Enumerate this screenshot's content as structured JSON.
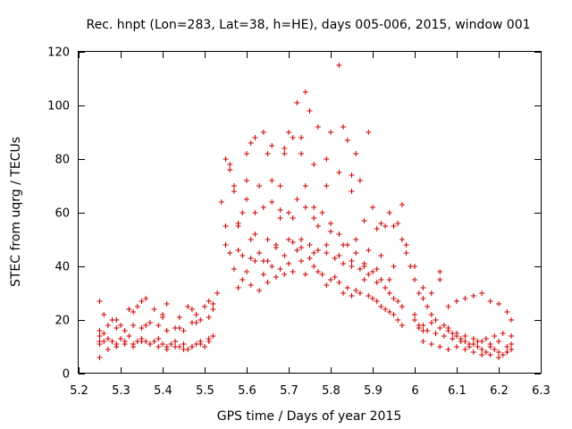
{
  "chart_data": {
    "type": "scatter",
    "title": "Rec. hnpt (Lon=283, Lat=38, h=HE), days 005-006, 2015, window 001",
    "xlabel": "GPS time / Days of year 2015",
    "ylabel": "STEC from uqrg / TECUs",
    "xlim": [
      5.2,
      6.3
    ],
    "ylim": [
      0,
      120
    ],
    "xticks": [
      "5.2",
      "5.3",
      "5.4",
      "5.5",
      "5.6",
      "5.7",
      "5.8",
      "5.9",
      "6",
      "6.1",
      "6.2",
      "6.3"
    ],
    "xtick_values": [
      5.2,
      5.3,
      5.4,
      5.5,
      5.6,
      5.7,
      5.8,
      5.9,
      6.0,
      6.1,
      6.2,
      6.3
    ],
    "yticks": [
      "0",
      "20",
      "40",
      "60",
      "80",
      "100",
      "120"
    ],
    "ytick_values": [
      0,
      20,
      40,
      60,
      80,
      100,
      120
    ],
    "marker": "+",
    "color": "#cc0000",
    "grid": false,
    "series": [
      {
        "name": "STEC",
        "x": [
          5.25,
          5.25,
          5.25,
          5.26,
          5.27,
          5.28,
          5.29,
          5.3,
          5.31,
          5.32,
          5.33,
          5.34,
          5.35,
          5.36,
          5.37,
          5.38,
          5.39,
          5.4,
          5.41,
          5.42,
          5.43,
          5.44,
          5.45,
          5.46,
          5.47,
          5.48,
          5.49,
          5.5,
          5.51,
          5.52,
          5.25,
          5.27,
          5.29,
          5.31,
          5.33,
          5.35,
          5.37,
          5.39,
          5.41,
          5.43,
          5.45,
          5.47,
          5.49,
          5.51,
          5.25,
          5.27,
          5.29,
          5.31,
          5.33,
          5.35,
          5.37,
          5.39,
          5.41,
          5.43,
          5.45,
          5.47,
          5.49,
          5.51,
          5.25,
          5.26,
          5.28,
          5.3,
          5.32,
          5.33,
          5.34,
          5.35,
          5.36,
          5.38,
          5.4,
          5.41,
          5.44,
          5.46,
          5.47,
          5.48,
          5.5,
          5.51,
          5.52,
          5.53,
          5.26,
          5.29,
          5.32,
          5.36,
          5.4,
          5.44,
          5.48,
          5.52,
          5.54,
          5.55,
          5.56,
          5.57,
          5.58,
          5.59,
          5.6,
          5.61,
          5.62,
          5.63,
          5.64,
          5.65,
          5.66,
          5.67,
          5.68,
          5.69,
          5.7,
          5.71,
          5.72,
          5.73,
          5.74,
          5.75,
          5.76,
          5.77,
          5.78,
          5.79,
          5.8,
          5.81,
          5.82,
          5.83,
          5.84,
          5.85,
          5.86,
          5.87,
          5.88,
          5.89,
          5.9,
          5.91,
          5.92,
          5.93,
          5.94,
          5.95,
          5.96,
          5.97,
          5.55,
          5.57,
          5.59,
          5.61,
          5.63,
          5.65,
          5.67,
          5.69,
          5.71,
          5.73,
          5.75,
          5.77,
          5.79,
          5.81,
          5.83,
          5.85,
          5.87,
          5.89,
          5.91,
          5.93,
          5.95,
          5.97,
          5.56,
          5.58,
          5.6,
          5.62,
          5.64,
          5.66,
          5.68,
          5.7,
          5.72,
          5.74,
          5.76,
          5.78,
          5.8,
          5.82,
          5.84,
          5.86,
          5.88,
          5.9,
          5.92,
          5.94,
          5.96,
          5.55,
          5.56,
          5.57,
          5.6,
          5.61,
          5.62,
          5.64,
          5.65,
          5.66,
          5.68,
          5.69,
          5.7,
          5.72,
          5.73,
          5.74,
          5.75,
          5.76,
          5.77,
          5.79,
          5.8,
          5.82,
          5.83,
          5.84,
          5.85,
          5.86,
          5.87,
          5.89,
          5.9,
          5.92,
          5.93,
          5.95,
          5.96,
          5.97,
          5.98,
          5.58,
          5.6,
          5.63,
          5.66,
          5.69,
          5.71,
          5.73,
          5.76,
          5.79,
          5.82,
          5.85,
          5.88,
          5.91,
          5.94,
          5.97,
          5.59,
          5.62,
          5.65,
          5.68,
          5.71,
          5.74,
          5.77,
          5.8,
          5.83,
          5.86,
          5.89,
          5.92,
          5.95,
          5.55,
          5.58,
          5.61,
          5.64,
          5.67,
          5.7,
          5.73,
          5.76,
          5.79,
          5.82,
          5.85,
          5.88,
          5.91,
          5.94,
          6.0,
          6.01,
          6.02,
          6.03,
          6.04,
          6.05,
          6.06,
          6.07,
          6.08,
          6.09,
          6.1,
          6.11,
          6.12,
          6.13,
          6.14,
          6.15,
          6.16,
          6.17,
          6.18,
          6.19,
          6.2,
          6.21,
          6.22,
          6.23,
          6.0,
          6.02,
          6.04,
          6.06,
          6.08,
          6.1,
          6.12,
          6.14,
          6.16,
          6.18,
          6.2,
          6.22,
          6.23,
          6.0,
          6.02,
          6.04,
          6.06,
          6.08,
          6.1,
          6.12,
          6.14,
          6.16,
          6.18,
          6.2,
          6.22,
          6.23,
          6.01,
          6.03,
          6.05,
          6.07,
          6.09,
          6.11,
          6.13,
          6.15,
          6.17,
          6.19,
          6.21,
          6.23,
          6.02,
          6.04,
          6.06,
          6.08,
          6.1,
          6.12,
          6.14,
          6.16,
          6.18,
          6.2,
          6.22,
          5.98,
          5.99,
          6.0,
          6.01,
          6.02
        ],
        "y": [
          12,
          14,
          11,
          12,
          13,
          12,
          11,
          13,
          12,
          14,
          11,
          12,
          13,
          12,
          11,
          12,
          13,
          11,
          10,
          11,
          12,
          10,
          11,
          9,
          10,
          11,
          12,
          10,
          12,
          14,
          6,
          9,
          10,
          11,
          10,
          12,
          11,
          10,
          9,
          10,
          9,
          10,
          11,
          13,
          16,
          18,
          17,
          16,
          18,
          17,
          19,
          18,
          16,
          17,
          16,
          19,
          20,
          21,
          27,
          22,
          20,
          18,
          24,
          23,
          25,
          27,
          28,
          24,
          22,
          26,
          21,
          25,
          24,
          22,
          25,
          27,
          26,
          30,
          15,
          20,
          24,
          18,
          21,
          17,
          19,
          24,
          64,
          55,
          45,
          39,
          32,
          35,
          38,
          33,
          42,
          31,
          37,
          34,
          40,
          36,
          39,
          37,
          41,
          38,
          46,
          42,
          37,
          43,
          40,
          38,
          37,
          33,
          35,
          36,
          34,
          30,
          32,
          29,
          31,
          30,
          35,
          29,
          28,
          27,
          25,
          24,
          23,
          22,
          20,
          18,
          80,
          68,
          60,
          50,
          45,
          42,
          47,
          44,
          49,
          50,
          48,
          46,
          45,
          43,
          41,
          40,
          39,
          37,
          34,
          32,
          28,
          25,
          78,
          56,
          72,
          60,
          62,
          64,
          58,
          60,
          65,
          70,
          58,
          60,
          56,
          52,
          48,
          45,
          40,
          38,
          35,
          30,
          27,
          80,
          76,
          70,
          82,
          86,
          88,
          90,
          82,
          85,
          70,
          84,
          90,
          101,
          88,
          105,
          98,
          78,
          92,
          80,
          90,
          115,
          92,
          87,
          74,
          82,
          72,
          90,
          62,
          56,
          55,
          55,
          56,
          50,
          48,
          55,
          65,
          70,
          72,
          82,
          88,
          82,
          62,
          70,
          75,
          68,
          57,
          54,
          60,
          63,
          44,
          52,
          50,
          61,
          58,
          62,
          55,
          53,
          48,
          50,
          46,
          44,
          40,
          48,
          46,
          43,
          42,
          48,
          50,
          47,
          45,
          48,
          44,
          42,
          41,
          39,
          35,
          40,
          30,
          28,
          25,
          22,
          20,
          35,
          18,
          17,
          15,
          14,
          13,
          12,
          10,
          11,
          10,
          9,
          8,
          10,
          9,
          8,
          7,
          8,
          9,
          20,
          18,
          19,
          17,
          16,
          15,
          14,
          13,
          12,
          11,
          12,
          10,
          11,
          35,
          32,
          30,
          38,
          25,
          27,
          28,
          29,
          30,
          27,
          26,
          23,
          20,
          17,
          16,
          15,
          14,
          13,
          12,
          11,
          12,
          13,
          14,
          15,
          14,
          12,
          11,
          10,
          9,
          10,
          9,
          8,
          7,
          7,
          6,
          8,
          45,
          40,
          22,
          18,
          16
        ]
      }
    ]
  }
}
